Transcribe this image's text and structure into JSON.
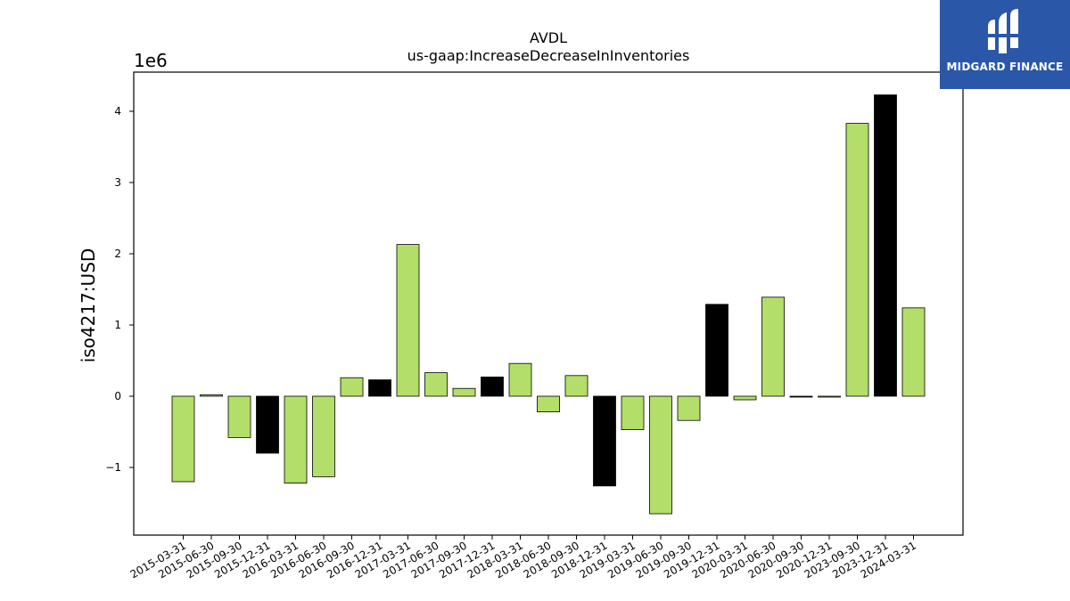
{
  "chart_data": {
    "type": "bar",
    "title": "AVDL",
    "subtitle": "us-gaap:IncreaseDecreaseInInventories",
    "ylabel": "iso4217:USD",
    "xlabel": "",
    "y_scale_label": "1e6",
    "ylim": [
      -1.95,
      4.55
    ],
    "yticks": [
      -1,
      0,
      1,
      2,
      3,
      4
    ],
    "ytick_labels": [
      "−1",
      "0",
      "1",
      "2",
      "3",
      "4"
    ],
    "grid": false,
    "categories": [
      "2015-03-31",
      "2015-06-30",
      "2015-09-30",
      "2015-12-31",
      "2016-03-31",
      "2016-06-30",
      "2016-09-30",
      "2016-12-31",
      "2017-03-31",
      "2017-06-30",
      "2017-09-30",
      "2017-12-31",
      "2018-03-31",
      "2018-06-30",
      "2018-09-30",
      "2018-12-31",
      "2019-03-31",
      "2019-06-30",
      "2019-09-30",
      "2019-12-31",
      "2020-03-31",
      "2020-06-30",
      "2020-09-30",
      "2020-12-31",
      "2023-09-30",
      "2023-12-31",
      "2024-03-31"
    ],
    "values": [
      -1.2,
      0.02,
      -0.58,
      -0.8,
      -1.22,
      -1.13,
      0.26,
      0.23,
      2.13,
      0.33,
      0.11,
      0.27,
      0.46,
      -0.22,
      0.29,
      -1.26,
      -0.47,
      -1.65,
      -0.34,
      1.29,
      -0.05,
      1.39,
      -0.01,
      -0.005,
      3.83,
      4.23,
      1.24
    ],
    "bar_colors": [
      "#b3de69",
      "#b3de69",
      "#b3de69",
      "#000000",
      "#b3de69",
      "#b3de69",
      "#b3de69",
      "#000000",
      "#b3de69",
      "#b3de69",
      "#b3de69",
      "#000000",
      "#b3de69",
      "#b3de69",
      "#b3de69",
      "#000000",
      "#b3de69",
      "#b3de69",
      "#b3de69",
      "#000000",
      "#b3de69",
      "#b3de69",
      "#000000",
      "#b3de69",
      "#b3de69",
      "#000000",
      "#b3de69"
    ],
    "colors": {
      "green": "#b3de69",
      "black": "#000000"
    }
  },
  "logo": {
    "text": "MIDGARD FINANCE",
    "background": "#2b57a8"
  }
}
